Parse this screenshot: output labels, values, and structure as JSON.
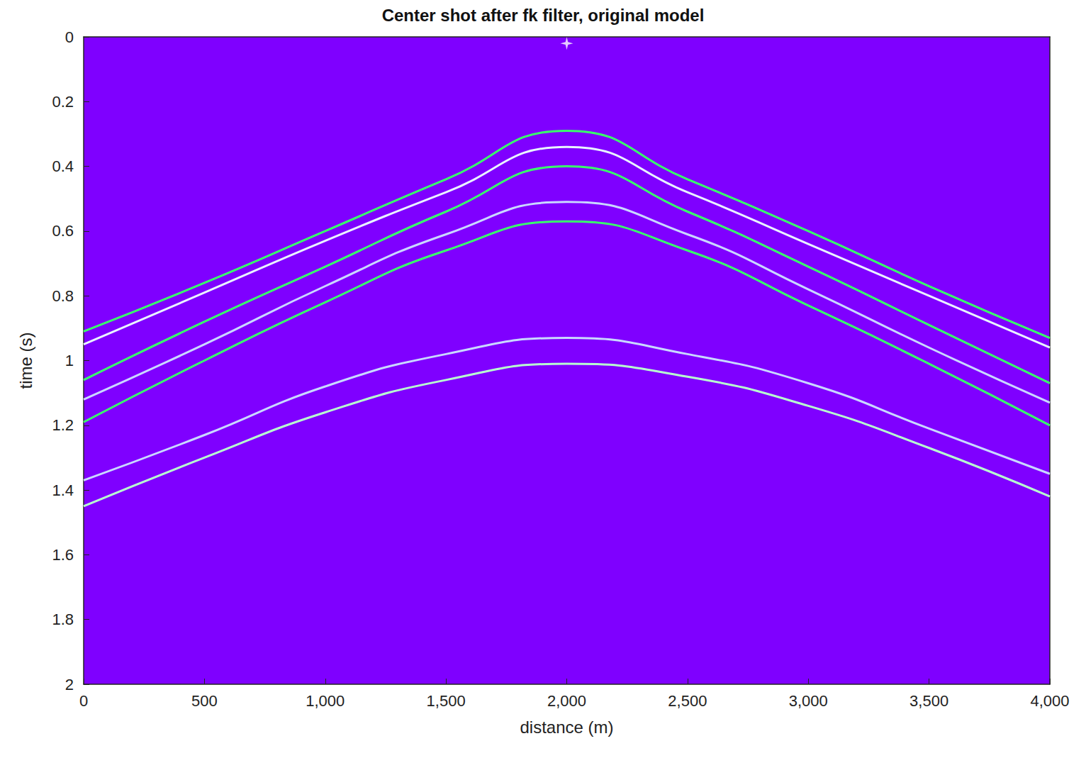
{
  "chart_data": {
    "type": "line",
    "title": "Center shot after fk filter, original model",
    "x_label": "distance (m)",
    "y_label": "time (s)",
    "x": [
      0,
      500,
      1000,
      1500,
      2000,
      2500,
      3000,
      3500,
      4000
    ],
    "series": [
      {
        "color": "#39ff6a",
        "values": [
          0.91,
          0.76,
          0.6,
          0.44,
          0.29,
          0.44,
          0.6,
          0.77,
          0.93
        ]
      },
      {
        "color": "#e8f4ff",
        "values": [
          0.95,
          0.79,
          0.63,
          0.48,
          0.34,
          0.48,
          0.64,
          0.8,
          0.96
        ]
      },
      {
        "color": "#39ff6a",
        "values": [
          1.06,
          0.88,
          0.71,
          0.54,
          0.4,
          0.54,
          0.71,
          0.89,
          1.07
        ]
      },
      {
        "color": "#c9d8ff",
        "values": [
          1.12,
          0.95,
          0.77,
          0.61,
          0.51,
          0.61,
          0.78,
          0.96,
          1.13
        ]
      },
      {
        "color": "#39ff6a",
        "values": [
          1.19,
          1.0,
          0.82,
          0.66,
          0.57,
          0.66,
          0.83,
          1.01,
          1.2
        ]
      },
      {
        "color": "#c9d8ff",
        "values": [
          1.37,
          1.23,
          1.08,
          0.98,
          0.93,
          0.98,
          1.07,
          1.21,
          1.35
        ]
      },
      {
        "color": "#b8ffd0",
        "values": [
          1.45,
          1.3,
          1.16,
          1.06,
          1.01,
          1.05,
          1.14,
          1.27,
          1.42
        ]
      },
      {
        "type": "scatter",
        "marker": "star",
        "color": "#ffffff",
        "x": [
          2000
        ],
        "values": [
          0.02
        ]
      }
    ],
    "xlim": [
      0,
      4000
    ],
    "xticks": [
      0,
      500,
      1000,
      1500,
      2000,
      2500,
      3000,
      3500,
      4000
    ],
    "ylim": [
      0,
      2
    ],
    "yticks": [
      0,
      0.2,
      0.4,
      0.6,
      0.8,
      1,
      1.2,
      1.4,
      1.6,
      1.8,
      2
    ],
    "grid": false
  }
}
